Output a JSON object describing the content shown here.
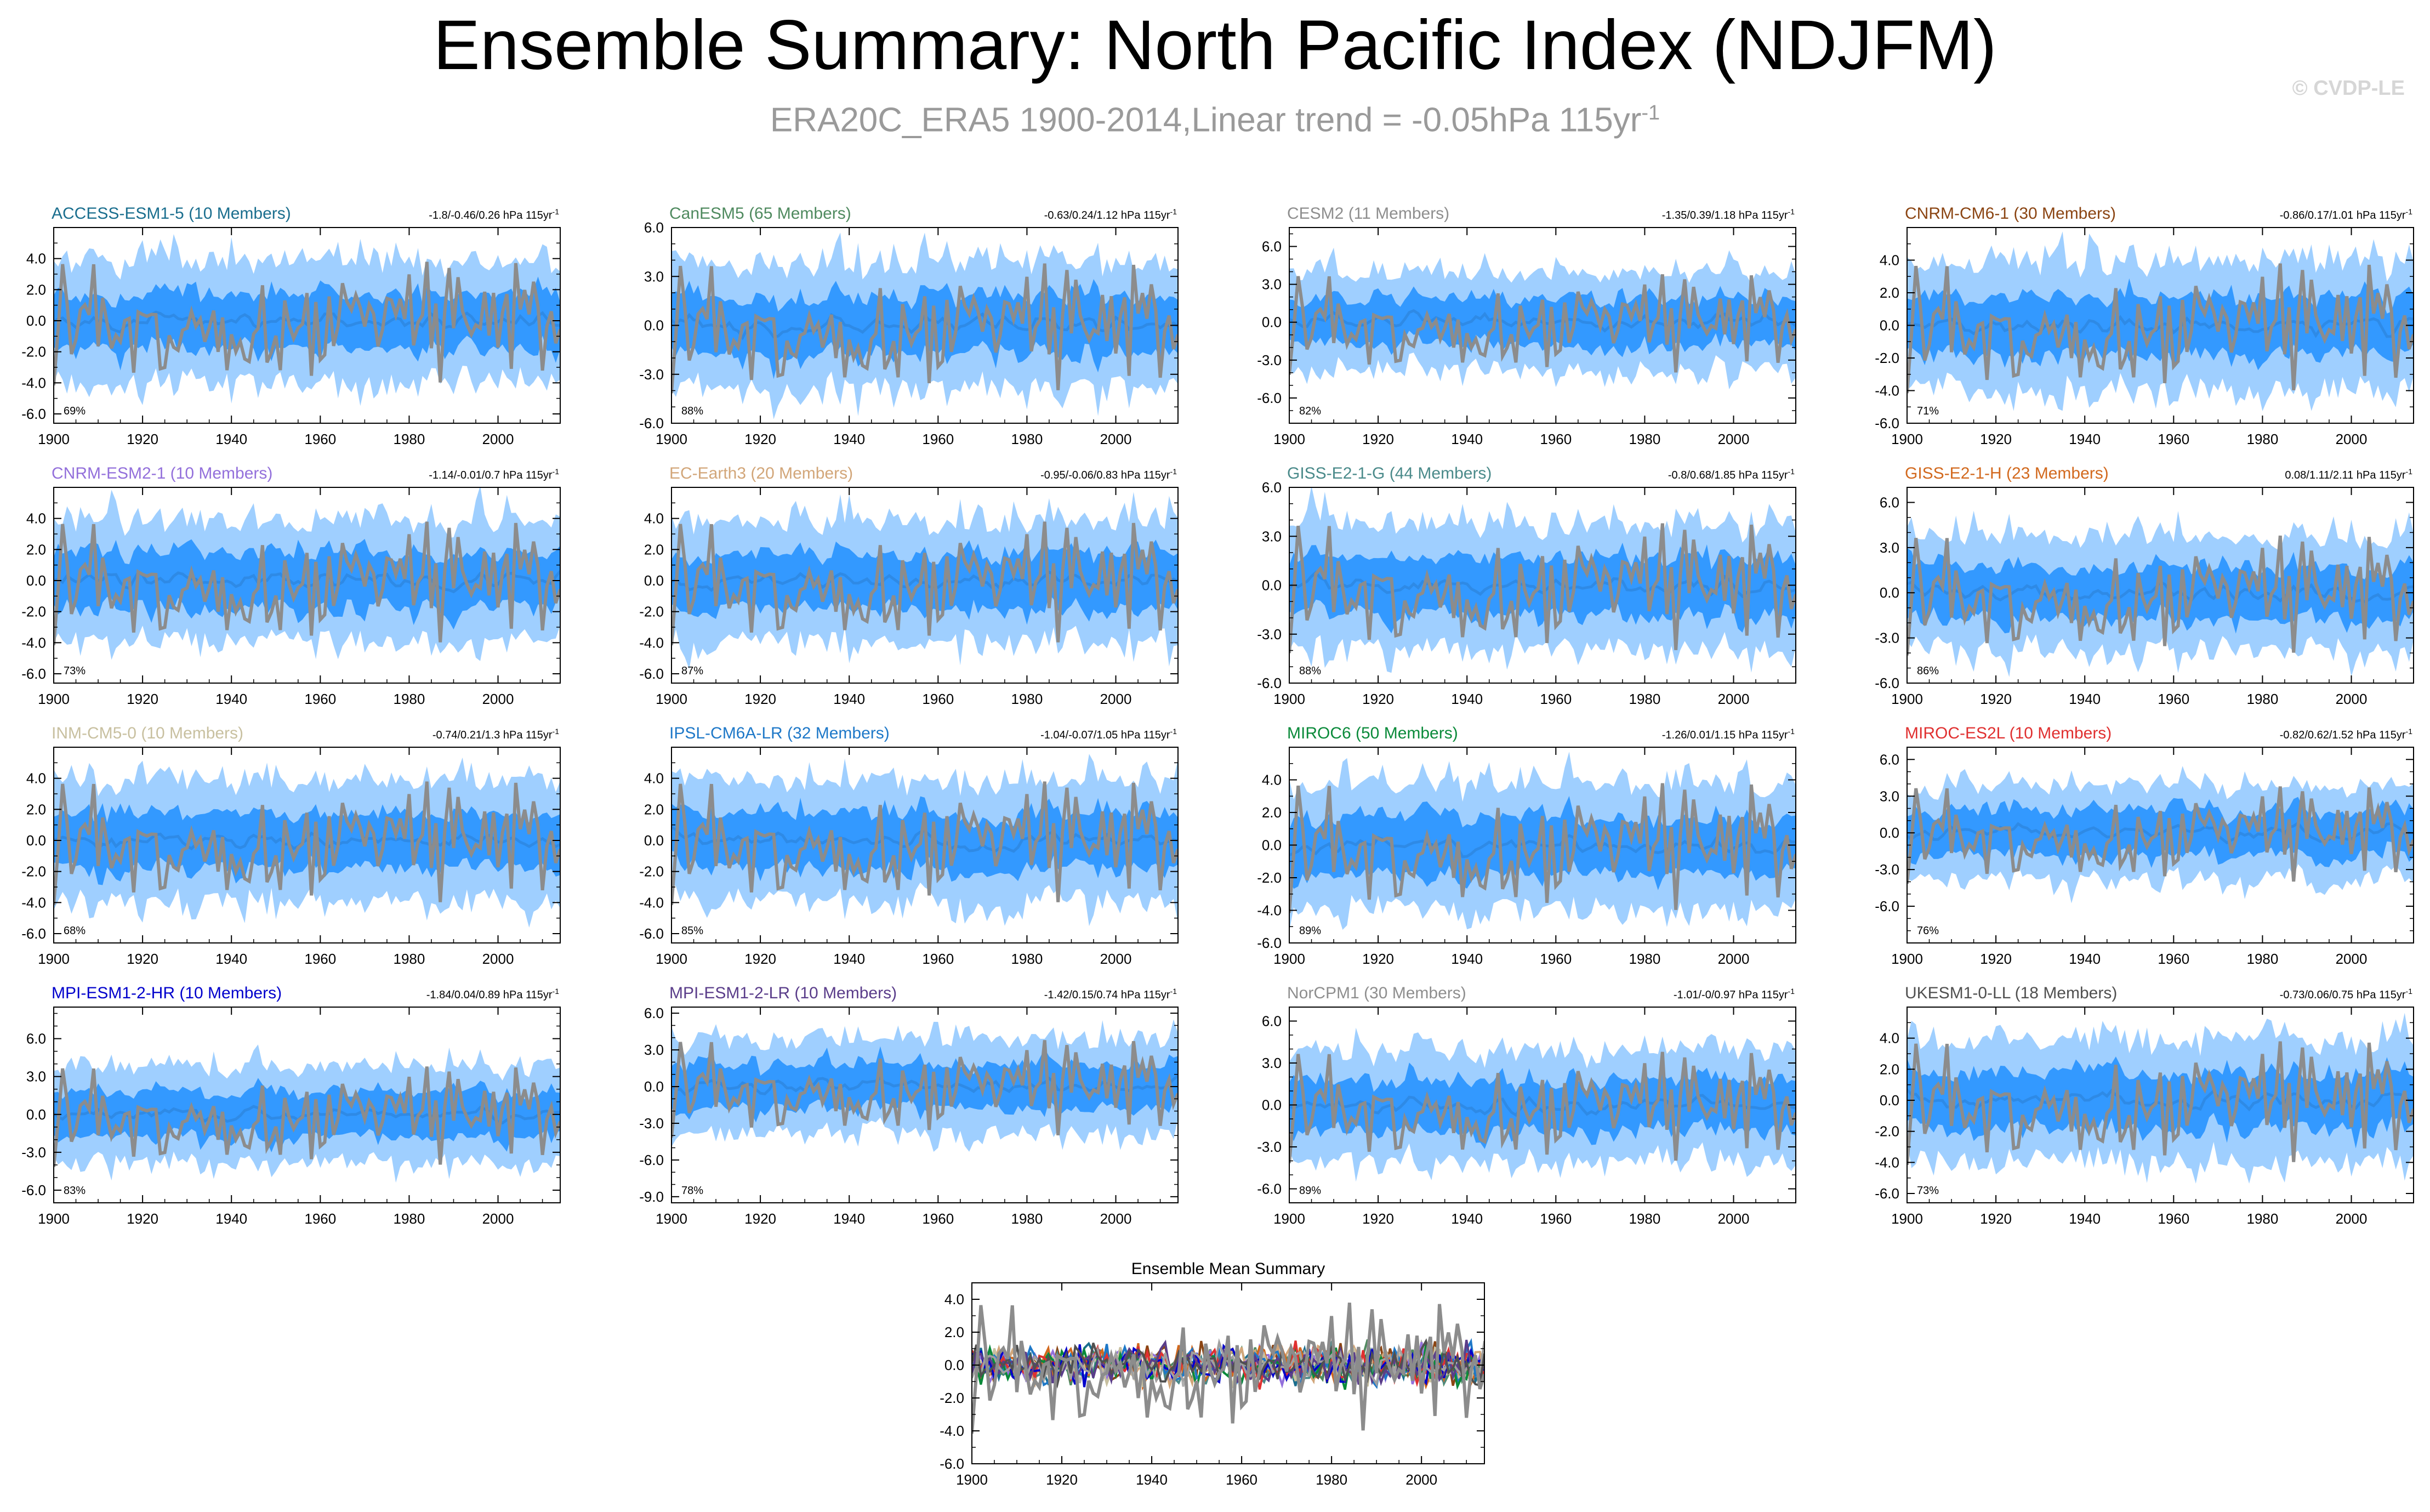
{
  "header": {
    "title": "Ensemble Summary: North Pacific Index (NDJFM)",
    "subtitle_main": "ERA20C_ERA5 1900-2014,Linear trend = -0.05hPa 115yr",
    "subtitle_sup": "-1",
    "copyright": "© CVDP-LE"
  },
  "colors": {
    "outer_band": "#9fcfff",
    "inner_band": "#3399ff",
    "ensemble_mean": "#2e8ae6",
    "observation": "#8c8c8c"
  },
  "chart_data": [
    {
      "type": "area",
      "title": "ACCESS-ESM1-5 (10 Members)",
      "title_color": "#1a6e8e",
      "trend_text": "-1.8/-0.46/0.26 hPa 115yr",
      "trend_sup": "-1",
      "percent_label": "69%",
      "yticks": [
        "4.0",
        "2.0",
        "0.0",
        "-2.0",
        "-4.0",
        "-6.0"
      ],
      "ylim": [
        -6.6,
        6.0
      ],
      "xticks": [
        "1900",
        "1920",
        "1940",
        "1960",
        "1980",
        "2000"
      ],
      "xlim": [
        1900,
        2014
      ],
      "series": [
        "ensemble range",
        "ensemble spread",
        "ensemble mean",
        "observations"
      ]
    },
    {
      "type": "area",
      "title": "CanESM5 (65 Members)",
      "title_color": "#4f8a5f",
      "trend_text": "-0.63/0.24/1.12 hPa 115yr",
      "trend_sup": "-1",
      "percent_label": "88%",
      "yticks": [
        "6.0",
        "3.0",
        "0.0",
        "-3.0",
        "-6.0"
      ],
      "ylim": [
        -6.0,
        6.0
      ],
      "xticks": [
        "1900",
        "1920",
        "1940",
        "1960",
        "1980",
        "2000"
      ],
      "xlim": [
        1900,
        2014
      ],
      "series": [
        "ensemble range",
        "ensemble spread",
        "ensemble mean",
        "observations"
      ]
    },
    {
      "type": "area",
      "title": "CESM2 (11 Members)",
      "title_color": "#8e8e8e",
      "trend_text": "-1.35/0.39/1.18 hPa 115yr",
      "trend_sup": "-1",
      "percent_label": "82%",
      "yticks": [
        "6.0",
        "3.0",
        "0.0",
        "-3.0",
        "-6.0"
      ],
      "ylim": [
        -8.0,
        7.5
      ],
      "xticks": [
        "1900",
        "1920",
        "1940",
        "1960",
        "1980",
        "2000"
      ],
      "xlim": [
        1900,
        2014
      ],
      "series": [
        "ensemble range",
        "ensemble spread",
        "ensemble mean",
        "observations"
      ]
    },
    {
      "type": "area",
      "title": "CNRM-CM6-1 (30 Members)",
      "title_color": "#8b4513",
      "trend_text": "-0.86/0.17/1.01 hPa 115yr",
      "trend_sup": "-1",
      "percent_label": "71%",
      "yticks": [
        "4.0",
        "2.0",
        "0.0",
        "-2.0",
        "-4.0",
        "-6.0"
      ],
      "ylim": [
        -6.0,
        6.0
      ],
      "xticks": [
        "1900",
        "1920",
        "1940",
        "1960",
        "1980",
        "2000"
      ],
      "xlim": [
        1900,
        2014
      ],
      "series": [
        "ensemble range",
        "ensemble spread",
        "ensemble mean",
        "observations"
      ]
    },
    {
      "type": "area",
      "title": "CNRM-ESM2-1 (10 Members)",
      "title_color": "#9370db",
      "trend_text": "-1.14/-0.01/0.7 hPa 115yr",
      "trend_sup": "-1",
      "percent_label": "73%",
      "yticks": [
        "4.0",
        "2.0",
        "0.0",
        "-2.0",
        "-4.0",
        "-6.0"
      ],
      "ylim": [
        -6.6,
        6.0
      ],
      "xticks": [
        "1900",
        "1920",
        "1940",
        "1960",
        "1980",
        "2000"
      ],
      "xlim": [
        1900,
        2014
      ],
      "series": [
        "ensemble range",
        "ensemble spread",
        "ensemble mean",
        "observations"
      ]
    },
    {
      "type": "area",
      "title": "EC-Earth3 (20 Members)",
      "title_color": "#d2a679",
      "trend_text": "-0.95/-0.06/0.83 hPa 115yr",
      "trend_sup": "-1",
      "percent_label": "87%",
      "yticks": [
        "4.0",
        "2.0",
        "0.0",
        "-2.0",
        "-4.0",
        "-6.0"
      ],
      "ylim": [
        -6.6,
        6.0
      ],
      "xticks": [
        "1900",
        "1920",
        "1940",
        "1960",
        "1980",
        "2000"
      ],
      "xlim": [
        1900,
        2014
      ],
      "series": [
        "ensemble range",
        "ensemble spread",
        "ensemble mean",
        "observations"
      ]
    },
    {
      "type": "area",
      "title": "GISS-E2-1-G (44 Members)",
      "title_color": "#4a8a8a",
      "trend_text": "-0.8/0.68/1.85 hPa 115yr",
      "trend_sup": "-1",
      "percent_label": "88%",
      "yticks": [
        "6.0",
        "3.0",
        "0.0",
        "-3.0",
        "-6.0"
      ],
      "ylim": [
        -6.0,
        6.0
      ],
      "xticks": [
        "1900",
        "1920",
        "1940",
        "1960",
        "1980",
        "2000"
      ],
      "xlim": [
        1900,
        2014
      ],
      "series": [
        "ensemble range",
        "ensemble spread",
        "ensemble mean",
        "observations"
      ]
    },
    {
      "type": "area",
      "title": "GISS-E2-1-H (23 Members)",
      "title_color": "#d2691e",
      "trend_text": "0.08/1.11/2.11 hPa 115yr",
      "trend_sup": "-1",
      "percent_label": "86%",
      "yticks": [
        "6.0",
        "3.0",
        "0.0",
        "-3.0",
        "-6.0"
      ],
      "ylim": [
        -6.0,
        7.0
      ],
      "xticks": [
        "1900",
        "1920",
        "1940",
        "1960",
        "1980",
        "2000"
      ],
      "xlim": [
        1900,
        2014
      ],
      "series": [
        "ensemble range",
        "ensemble spread",
        "ensemble mean",
        "observations"
      ]
    },
    {
      "type": "area",
      "title": "INM-CM5-0 (10 Members)",
      "title_color": "#c8c0a0",
      "trend_text": "-0.74/0.21/1.3 hPa 115yr",
      "trend_sup": "-1",
      "percent_label": "68%",
      "yticks": [
        "4.0",
        "2.0",
        "0.0",
        "-2.0",
        "-4.0",
        "-6.0"
      ],
      "ylim": [
        -6.6,
        6.0
      ],
      "xticks": [
        "1900",
        "1920",
        "1940",
        "1960",
        "1980",
        "2000"
      ],
      "xlim": [
        1900,
        2014
      ],
      "series": [
        "ensemble range",
        "ensemble spread",
        "ensemble mean",
        "observations"
      ]
    },
    {
      "type": "area",
      "title": "IPSL-CM6A-LR (32 Members)",
      "title_color": "#1e78c8",
      "trend_text": "-1.04/-0.07/1.05 hPa 115yr",
      "trend_sup": "-1",
      "percent_label": "85%",
      "yticks": [
        "4.0",
        "2.0",
        "0.0",
        "-2.0",
        "-4.0",
        "-6.0"
      ],
      "ylim": [
        -6.6,
        6.0
      ],
      "xticks": [
        "1900",
        "1920",
        "1940",
        "1960",
        "1980",
        "2000"
      ],
      "xlim": [
        1900,
        2014
      ],
      "series": [
        "ensemble range",
        "ensemble spread",
        "ensemble mean",
        "observations"
      ]
    },
    {
      "type": "area",
      "title": "MIROC6 (50 Members)",
      "title_color": "#0a8a3a",
      "trend_text": "-1.26/0.01/1.15 hPa 115yr",
      "trend_sup": "-1",
      "percent_label": "89%",
      "yticks": [
        "4.0",
        "2.0",
        "0.0",
        "-2.0",
        "-4.0",
        "-6.0"
      ],
      "ylim": [
        -6.0,
        6.0
      ],
      "xticks": [
        "1900",
        "1920",
        "1940",
        "1960",
        "1980",
        "2000"
      ],
      "xlim": [
        1900,
        2014
      ],
      "series": [
        "ensemble range",
        "ensemble spread",
        "ensemble mean",
        "observations"
      ]
    },
    {
      "type": "area",
      "title": "MIROC-ES2L (10 Members)",
      "title_color": "#e03030",
      "trend_text": "-0.82/0.62/1.52 hPa 115yr",
      "trend_sup": "-1",
      "percent_label": "76%",
      "yticks": [
        "6.0",
        "3.0",
        "0.0",
        "-3.0",
        "-6.0"
      ],
      "ylim": [
        -9.0,
        7.0
      ],
      "xticks": [
        "1900",
        "1920",
        "1940",
        "1960",
        "1980",
        "2000"
      ],
      "xlim": [
        1900,
        2014
      ],
      "series": [
        "ensemble range",
        "ensemble spread",
        "ensemble mean",
        "observations"
      ]
    },
    {
      "type": "area",
      "title": "MPI-ESM1-2-HR (10 Members)",
      "title_color": "#0000cc",
      "trend_text": "-1.84/0.04/0.89 hPa 115yr",
      "trend_sup": "-1",
      "percent_label": "83%",
      "yticks": [
        "6.0",
        "3.0",
        "0.0",
        "-3.0",
        "-6.0"
      ],
      "ylim": [
        -7.0,
        8.5
      ],
      "xticks": [
        "1900",
        "1920",
        "1940",
        "1960",
        "1980",
        "2000"
      ],
      "xlim": [
        1900,
        2014
      ],
      "series": [
        "ensemble range",
        "ensemble spread",
        "ensemble mean",
        "observations"
      ]
    },
    {
      "type": "area",
      "title": "MPI-ESM1-2-LR (10 Members)",
      "title_color": "#5a3d8a",
      "trend_text": "-1.42/0.15/0.74 hPa 115yr",
      "trend_sup": "-1",
      "percent_label": "78%",
      "yticks": [
        "6.0",
        "3.0",
        "0.0",
        "-3.0",
        "-6.0",
        "-9.0"
      ],
      "ylim": [
        -9.5,
        6.5
      ],
      "xticks": [
        "1900",
        "1920",
        "1940",
        "1960",
        "1980",
        "2000"
      ],
      "xlim": [
        1900,
        2014
      ],
      "series": [
        "ensemble range",
        "ensemble spread",
        "ensemble mean",
        "observations"
      ]
    },
    {
      "type": "area",
      "title": "NorCPM1 (30 Members)",
      "title_color": "#8e8e8e",
      "trend_text": "-1.01/-0/0.97 hPa 115yr",
      "trend_sup": "-1",
      "percent_label": "89%",
      "yticks": [
        "6.0",
        "3.0",
        "0.0",
        "-3.0",
        "-6.0"
      ],
      "ylim": [
        -7.0,
        7.0
      ],
      "xticks": [
        "1900",
        "1920",
        "1940",
        "1960",
        "1980",
        "2000"
      ],
      "xlim": [
        1900,
        2014
      ],
      "series": [
        "ensemble range",
        "ensemble spread",
        "ensemble mean",
        "observations"
      ]
    },
    {
      "type": "area",
      "title": "UKESM1-0-LL (18 Members)",
      "title_color": "#505050",
      "trend_text": "-0.73/0.06/0.75 hPa 115yr",
      "trend_sup": "-1",
      "percent_label": "73%",
      "yticks": [
        "4.0",
        "2.0",
        "0.0",
        "-2.0",
        "-4.0",
        "-6.0"
      ],
      "ylim": [
        -6.6,
        6.0
      ],
      "xticks": [
        "1900",
        "1920",
        "1940",
        "1960",
        "1980",
        "2000"
      ],
      "xlim": [
        1900,
        2014
      ],
      "series": [
        "ensemble range",
        "ensemble spread",
        "ensemble mean",
        "observations"
      ]
    },
    {
      "type": "line",
      "title": "Ensemble Mean Summary",
      "title_color": "#000000",
      "yticks": [
        "4.0",
        "2.0",
        "0.0",
        "-2.0",
        "-4.0",
        "-6.0"
      ],
      "ylim": [
        -6.0,
        5.0
      ],
      "xticks": [
        "1900",
        "1920",
        "1940",
        "1960",
        "1980",
        "2000"
      ],
      "xlim": [
        1900,
        2014
      ],
      "series_colors": [
        "#1a6e8e",
        "#4f8a5f",
        "#b0b0b0",
        "#8b4513",
        "#9370db",
        "#d2a679",
        "#4a8a8a",
        "#d2691e",
        "#c8c0a0",
        "#1e78c8",
        "#0a8a3a",
        "#e03030",
        "#0000cc",
        "#5a3d8a",
        "#a0a0a0",
        "#505050"
      ]
    }
  ]
}
